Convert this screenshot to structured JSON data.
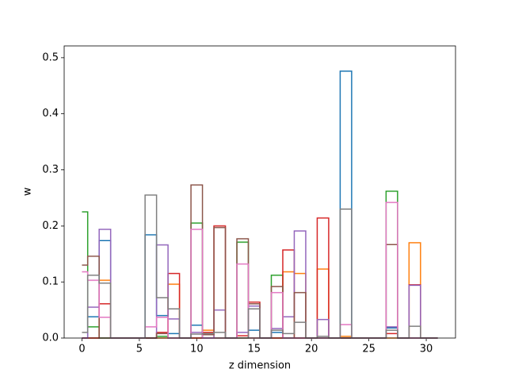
{
  "chart_data": {
    "type": "line",
    "drawstyle": "steps-mid",
    "xlabel": "z dimension",
    "ylabel": "w",
    "x": [
      0,
      1,
      2,
      3,
      4,
      5,
      6,
      7,
      8,
      9,
      10,
      11,
      12,
      13,
      14,
      15,
      16,
      17,
      18,
      19,
      20,
      21,
      22,
      23,
      24,
      25,
      26,
      27,
      28,
      29,
      30,
      31
    ],
    "series": [
      {
        "color": "#1f77b4",
        "values": [
          0,
          0.038,
          0.174,
          0,
          0,
          0,
          0.184,
          0.04,
          0.008,
          0,
          0.023,
          0,
          0,
          0,
          0,
          0.014,
          0,
          0.01,
          0,
          0,
          0,
          0,
          0,
          0.476,
          0,
          0,
          0,
          0.018,
          0,
          0,
          0,
          0
        ]
      },
      {
        "color": "#ff7f0e",
        "values": [
          0,
          0,
          0.103,
          0,
          0,
          0,
          0,
          0,
          0.096,
          0,
          0,
          0.014,
          0,
          0,
          0,
          0,
          0,
          0,
          0.118,
          0.115,
          0,
          0.123,
          0,
          0.003,
          0,
          0,
          0,
          0,
          0,
          0.17,
          0,
          0
        ]
      },
      {
        "color": "#2ca02c",
        "values": [
          0.225,
          0.02,
          0,
          0,
          0,
          0,
          0,
          0.003,
          0,
          0,
          0.205,
          0,
          0,
          0,
          0.171,
          0,
          0,
          0.112,
          0,
          0,
          0,
          0,
          0,
          0,
          0,
          0,
          0,
          0.262,
          0,
          0,
          0,
          0
        ]
      },
      {
        "color": "#d62728",
        "values": [
          0,
          0,
          0.061,
          0,
          0,
          0,
          0,
          0.01,
          0.115,
          0,
          0,
          0.01,
          0.2,
          0,
          0.004,
          0.064,
          0,
          0,
          0.157,
          0,
          0,
          0.214,
          0,
          0,
          0,
          0,
          0,
          0.008,
          0,
          0.095,
          0,
          0
        ]
      },
      {
        "color": "#9467bd",
        "values": [
          0,
          0.055,
          0.194,
          0,
          0,
          0,
          0,
          0.166,
          0.034,
          0,
          0.01,
          0,
          0.05,
          0,
          0.01,
          0.057,
          0,
          0.017,
          0.038,
          0.191,
          0,
          0.033,
          0,
          0,
          0,
          0,
          0,
          0.02,
          0,
          0.094,
          0,
          0
        ]
      },
      {
        "color": "#8c564b",
        "values": [
          0.13,
          0.146,
          0,
          0,
          0,
          0,
          0,
          0.008,
          0,
          0,
          0.273,
          0.006,
          0.197,
          0,
          0.177,
          0.061,
          0,
          0.092,
          0,
          0.081,
          0,
          0,
          0,
          0,
          0,
          0,
          0,
          0.167,
          0,
          0,
          0,
          0
        ]
      },
      {
        "color": "#e377c2",
        "values": [
          0.118,
          0.103,
          0.037,
          0,
          0,
          0,
          0.02,
          0.037,
          0,
          0,
          0.194,
          0,
          0,
          0,
          0.132,
          0,
          0,
          0.081,
          0,
          0,
          0,
          0,
          0,
          0.024,
          0,
          0,
          0,
          0.242,
          0,
          0,
          0,
          0
        ]
      },
      {
        "color": "#7f7f7f",
        "values": [
          0.01,
          0.112,
          0.098,
          0,
          0,
          0,
          0.255,
          0.072,
          0.052,
          0,
          0.007,
          0.008,
          0.01,
          0,
          0,
          0.052,
          0,
          0.014,
          0.008,
          0.028,
          0,
          0.003,
          0,
          0.23,
          0,
          0,
          0,
          0.014,
          0,
          0.021,
          0,
          0
        ]
      }
    ],
    "xlim": [
      -1.55,
      32.55
    ],
    "xticks": [
      0,
      5,
      10,
      15,
      20,
      25,
      30
    ],
    "ylim": [
      0,
      0.521
    ],
    "yticks": [
      {
        "value": 0,
        "label": "0.0"
      },
      0.1,
      0.2,
      0.3,
      0.4,
      0.5
    ]
  }
}
